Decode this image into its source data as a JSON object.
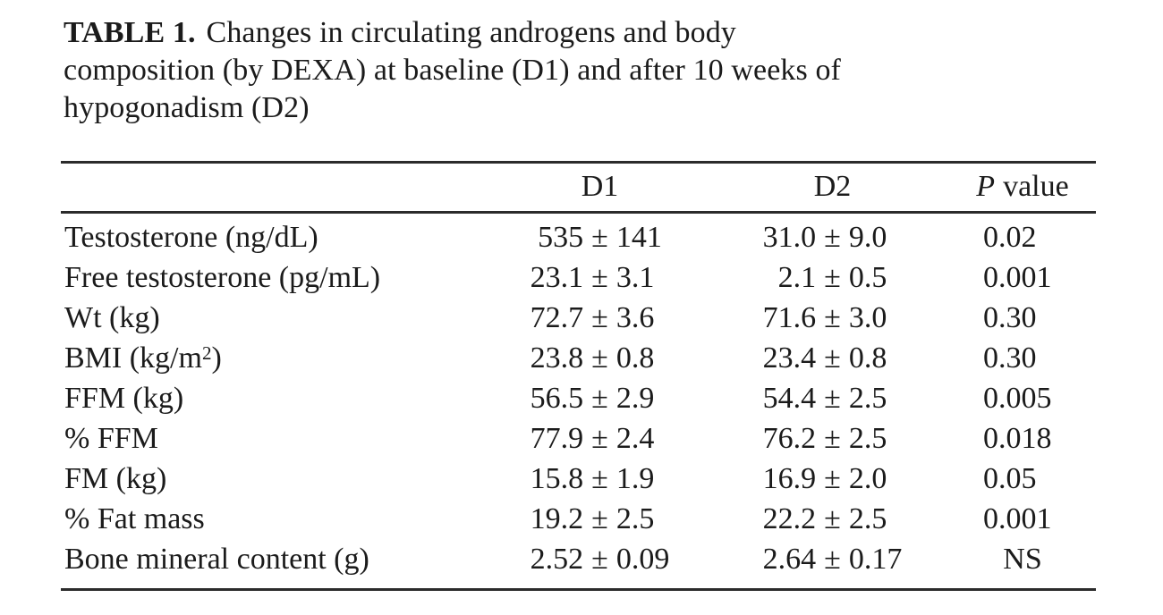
{
  "caption": {
    "label": "TABLE 1.",
    "lines": [
      "Changes in circulating androgens and body",
      "composition (by DEXA) at baseline (D1) and after 10 weeks of",
      "hypogonadism (D2)"
    ]
  },
  "symbols": {
    "plus_minus": "±"
  },
  "chart_data": {
    "type": "table",
    "title": "TABLE 1. Changes in circulating androgens and body composition (by DEXA) at baseline (D1) and after 10 weeks of hypogonadism (D2)",
    "columns": [
      "",
      "D1",
      "D2",
      "P value"
    ],
    "rows_text": [
      [
        "Testosterone (ng/dL)",
        "535 ± 141",
        "31.0 ± 9.0",
        "0.02"
      ],
      [
        "Free testosterone (pg/mL)",
        "23.1 ± 3.1",
        "2.1 ± 0.5",
        "0.001"
      ],
      [
        "Wt (kg)",
        "72.7 ± 3.6",
        "71.6 ± 3.0",
        "0.30"
      ],
      [
        "BMI (kg/m2)",
        "23.8 ± 0.8",
        "23.4 ± 0.8",
        "0.30"
      ],
      [
        "FFM (kg)",
        "56.5 ± 2.9",
        "54.4 ± 2.5",
        "0.005"
      ],
      [
        "% FFM",
        "77.9 ± 2.4",
        "76.2 ± 2.5",
        "0.018"
      ],
      [
        "FM (kg)",
        "15.8 ± 1.9",
        "16.9 ± 2.0",
        "0.05"
      ],
      [
        "% Fat mass",
        "19.2 ± 2.5",
        "22.2 ± 2.5",
        "0.001"
      ],
      [
        "Bone mineral content (g)",
        "2.52 ± 0.09",
        "2.64 ± 0.17",
        "NS"
      ]
    ]
  },
  "table": {
    "col_headers": {
      "d1": "D1",
      "d2": "D2",
      "p_italic": "P",
      "p_rest": "value"
    },
    "rows": [
      {
        "label": "Testosterone (ng/dL)",
        "d1m": "535",
        "d1s": "141",
        "d2m": "31.0",
        "d2s": "9.0",
        "p": "0.02"
      },
      {
        "label": "Free testosterone (pg/mL)",
        "d1m": "23.1",
        "d1s": "3.1",
        "d2m": "2.1",
        "d2s": "0.5",
        "p": "0.001"
      },
      {
        "label": "Wt (kg)",
        "d1m": "72.7",
        "d1s": "3.6",
        "d2m": "71.6",
        "d2s": "3.0",
        "p": "0.30"
      },
      {
        "label": "BMI (kg/m",
        "sup": "2",
        "label2": ")",
        "d1m": "23.8",
        "d1s": "0.8",
        "d2m": "23.4",
        "d2s": "0.8",
        "p": "0.30"
      },
      {
        "label": "FFM (kg)",
        "d1m": "56.5",
        "d1s": "2.9",
        "d2m": "54.4",
        "d2s": "2.5",
        "p": "0.005"
      },
      {
        "label": "% FFM",
        "d1m": "77.9",
        "d1s": "2.4",
        "d2m": "76.2",
        "d2s": "2.5",
        "p": "0.018"
      },
      {
        "label": "FM (kg)",
        "d1m": "15.8",
        "d1s": "1.9",
        "d2m": "16.9",
        "d2s": "2.0",
        "p": "0.05"
      },
      {
        "label": "% Fat mass",
        "d1m": "19.2",
        "d1s": "2.5",
        "d2m": "22.2",
        "d2s": "2.5",
        "p": "0.001"
      },
      {
        "label": "Bone mineral content (g)",
        "d1m": "2.52",
        "d1s": "0.09",
        "d2m": "2.64",
        "d2s": "0.17",
        "p": "NS"
      }
    ]
  }
}
